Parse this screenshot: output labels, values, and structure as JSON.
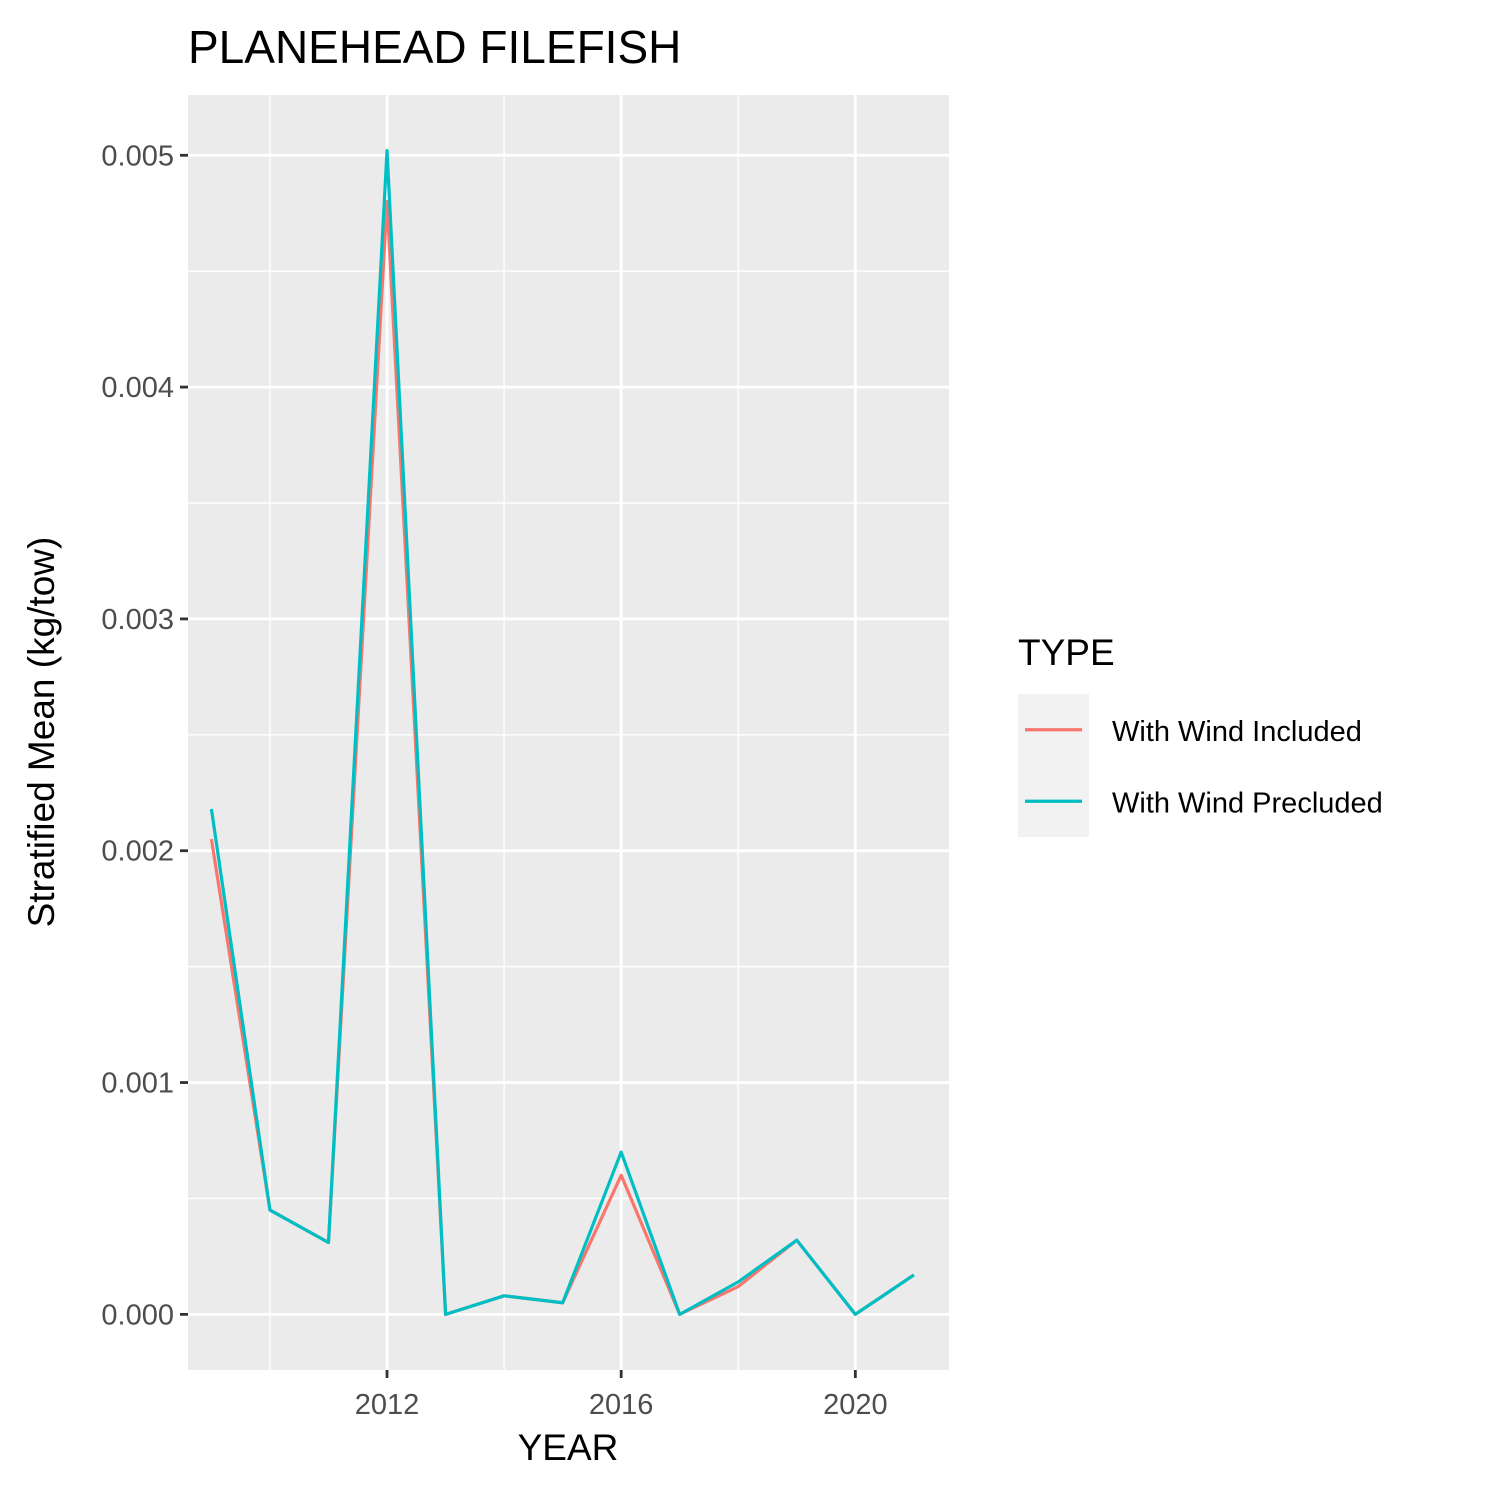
{
  "chart_data": {
    "type": "line",
    "title": "PLANEHEAD FILEFISH",
    "xlabel": "YEAR",
    "ylabel": "Stratified Mean (kg/tow)",
    "xlim": [
      2008.6,
      2021.6
    ],
    "ylim": [
      -0.00024,
      0.00526
    ],
    "x_ticks": [
      2012,
      2016,
      2020
    ],
    "x_tick_labels": [
      "2012",
      "2016",
      "2020"
    ],
    "y_ticks": [
      0.0,
      0.001,
      0.002,
      0.003,
      0.004,
      0.005
    ],
    "y_tick_labels": [
      "0.000",
      "0.001",
      "0.002",
      "0.003",
      "0.004",
      "0.005"
    ],
    "grid": true,
    "legend": {
      "title": "TYPE",
      "placement": "right"
    },
    "x": [
      2009,
      2010,
      2011,
      2012,
      2013,
      2014,
      2015,
      2016,
      2017,
      2018,
      2019,
      2020,
      2021
    ],
    "series": [
      {
        "name": "With Wind Included",
        "color": "#F8766D",
        "values": [
          0.00205,
          0.00045,
          0.00031,
          0.0048,
          0.0,
          8e-05,
          5e-05,
          0.0006,
          0.0,
          0.00012,
          0.00032,
          0.0,
          0.00017
        ]
      },
      {
        "name": "With Wind Precluded",
        "color": "#00BFC4",
        "values": [
          0.00218,
          0.00045,
          0.00031,
          0.00502,
          0.0,
          8e-05,
          5e-05,
          0.0007,
          0.0,
          0.00014,
          0.00032,
          0.0,
          0.00017
        ]
      }
    ]
  }
}
